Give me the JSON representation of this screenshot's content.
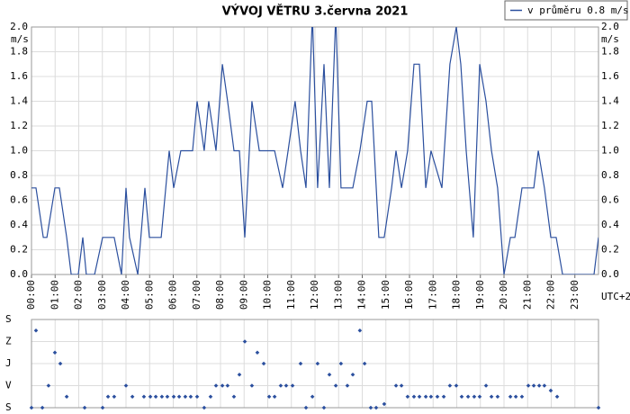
{
  "title": "VÝVOJ VĚTRU  3.června 2021",
  "legend": "v průměru 0.8 m/s",
  "chart_data": [
    {
      "type": "line",
      "y_unit": "m/s",
      "x_unit": "UTC+2",
      "color": "#2b4f9e",
      "grid": true,
      "xlim": [
        0,
        24
      ],
      "ylim": [
        0,
        2
      ],
      "xticks": [
        {
          "value": 0,
          "label": "00:00"
        },
        {
          "value": 1,
          "label": "01:00"
        },
        {
          "value": 2,
          "label": "02:00"
        },
        {
          "value": 3,
          "label": "03:00"
        },
        {
          "value": 4,
          "label": "04:00"
        },
        {
          "value": 5,
          "label": "05:00"
        },
        {
          "value": 6,
          "label": "06:00"
        },
        {
          "value": 7,
          "label": "07:00"
        },
        {
          "value": 8,
          "label": "08:00"
        },
        {
          "value": 9,
          "label": "09:00"
        },
        {
          "value": 10,
          "label": "10:00"
        },
        {
          "value": 11,
          "label": "11:00"
        },
        {
          "value": 12,
          "label": "12:00"
        },
        {
          "value": 13,
          "label": "13:00"
        },
        {
          "value": 14,
          "label": "14:00"
        },
        {
          "value": 15,
          "label": "15:00"
        },
        {
          "value": 16,
          "label": "16:00"
        },
        {
          "value": 17,
          "label": "17:00"
        },
        {
          "value": 18,
          "label": "18:00"
        },
        {
          "value": 19,
          "label": "19:00"
        },
        {
          "value": 20,
          "label": "20:00"
        },
        {
          "value": 21,
          "label": "21:00"
        },
        {
          "value": 22,
          "label": "22:00"
        },
        {
          "value": 23,
          "label": "23:00"
        }
      ],
      "yticks": [
        {
          "value": 0,
          "label": "0.0"
        },
        0.2,
        0.4,
        0.6,
        0.8,
        {
          "value": 1,
          "label": "1.0"
        },
        1.2,
        1.4,
        1.6,
        1.8,
        {
          "value": 2,
          "label": "2.0"
        }
      ],
      "x": [
        0,
        0.19,
        0.5,
        0.65,
        0.99,
        1.18,
        1.49,
        1.68,
        1.98,
        2.17,
        2.32,
        2.67,
        3.01,
        3.5,
        3.81,
        4.0,
        4.15,
        4.5,
        4.8,
        4.99,
        5.49,
        5.83,
        6.02,
        6.32,
        6.82,
        7.01,
        7.31,
        7.5,
        7.81,
        8.08,
        8.3,
        8.57,
        8.8,
        9.03,
        9.33,
        9.64,
        10.29,
        10.63,
        10.86,
        11.16,
        11.39,
        11.62,
        11.89,
        12.11,
        12.38,
        12.61,
        12.88,
        13.1,
        13.6,
        13.9,
        14.21,
        14.4,
        14.7,
        14.93,
        15.24,
        15.43,
        15.66,
        15.92,
        16.19,
        16.42,
        16.69,
        16.91,
        17.14,
        17.37,
        17.71,
        17.98,
        18.17,
        18.4,
        18.7,
        18.97,
        19.24,
        19.47,
        19.73,
        20.0,
        20.27,
        20.46,
        20.76,
        21.26,
        21.45,
        21.71,
        21.98,
        22.21,
        22.48,
        23.81,
        24
      ],
      "values": [
        0.7,
        0.7,
        0.3,
        0.3,
        0.7,
        0.7,
        0.3,
        0,
        0,
        0.3,
        0,
        0,
        0.3,
        0.3,
        0,
        0.7,
        0.3,
        0,
        0.7,
        0.3,
        0.3,
        1.0,
        0.7,
        1.0,
        1.0,
        1.4,
        1.0,
        1.4,
        1.0,
        1.7,
        1.4,
        1.0,
        1.0,
        0.3,
        1.4,
        1.0,
        1.0,
        0.7,
        1.0,
        1.4,
        1.0,
        0.7,
        2.1,
        0.7,
        1.7,
        0.7,
        2.1,
        0.7,
        0.7,
        1.0,
        1.4,
        1.4,
        0.3,
        0.3,
        0.7,
        1.0,
        0.7,
        1.0,
        1.7,
        1.7,
        0.7,
        1.0,
        0.85,
        0.7,
        1.7,
        2.0,
        1.7,
        1.0,
        0.3,
        1.7,
        1.4,
        1.0,
        0.7,
        0,
        0.3,
        0.3,
        0.7,
        0.7,
        1.0,
        0.7,
        0.3,
        0.3,
        0,
        0,
        0.3
      ]
    },
    {
      "type": "scatter",
      "color": "#2b4f9e",
      "grid": true,
      "xlim": [
        0,
        24
      ],
      "ylim": [
        0,
        360
      ],
      "xticks": [
        0,
        1,
        2,
        3,
        4,
        5,
        6,
        7,
        8,
        9,
        10,
        11,
        12,
        13,
        14,
        15,
        16,
        17,
        18,
        19,
        20,
        21,
        22,
        23
      ],
      "yticks": [
        {
          "value": 0,
          "label": "S"
        },
        {
          "value": 90,
          "label": "V"
        },
        {
          "value": 180,
          "label": "J"
        },
        {
          "value": 270,
          "label": "Z"
        },
        {
          "value": 360,
          "label": "S"
        }
      ],
      "x": [
        0,
        0.19,
        0.46,
        0.72,
        0.99,
        1.22,
        1.49,
        2.25,
        3.01,
        3.24,
        3.5,
        4.0,
        4.27,
        4.76,
        5.03,
        5.26,
        5.52,
        5.75,
        6.02,
        6.25,
        6.51,
        6.74,
        7.01,
        7.31,
        7.58,
        7.81,
        8.08,
        8.3,
        8.57,
        8.8,
        9.03,
        9.33,
        9.56,
        9.83,
        10.06,
        10.29,
        10.55,
        10.78,
        11.05,
        11.39,
        11.62,
        11.89,
        12.11,
        12.38,
        12.61,
        12.88,
        13.1,
        13.37,
        13.6,
        13.9,
        14.1,
        14.36,
        14.59,
        14.93,
        15.43,
        15.66,
        15.92,
        16.19,
        16.42,
        16.69,
        16.91,
        17.18,
        17.45,
        17.71,
        17.98,
        18.21,
        18.48,
        18.74,
        18.97,
        19.24,
        19.47,
        19.73,
        20.27,
        20.5,
        20.76,
        21.03,
        21.26,
        21.49,
        21.71,
        21.98,
        22.25,
        24
      ],
      "values": [
        0,
        315,
        0,
        90,
        225,
        180,
        45,
        0,
        0,
        45,
        45,
        90,
        45,
        45,
        45,
        45,
        45,
        45,
        45,
        45,
        45,
        45,
        45,
        0,
        45,
        90,
        90,
        90,
        45,
        135,
        270,
        90,
        225,
        180,
        45,
        45,
        90,
        90,
        90,
        180,
        0,
        45,
        180,
        0,
        135,
        90,
        180,
        90,
        135,
        315,
        180,
        0,
        0,
        15,
        90,
        90,
        45,
        45,
        45,
        45,
        45,
        45,
        45,
        90,
        90,
        45,
        45,
        45,
        45,
        90,
        45,
        45,
        45,
        45,
        45,
        90,
        90,
        90,
        90,
        70,
        45,
        0
      ]
    }
  ]
}
